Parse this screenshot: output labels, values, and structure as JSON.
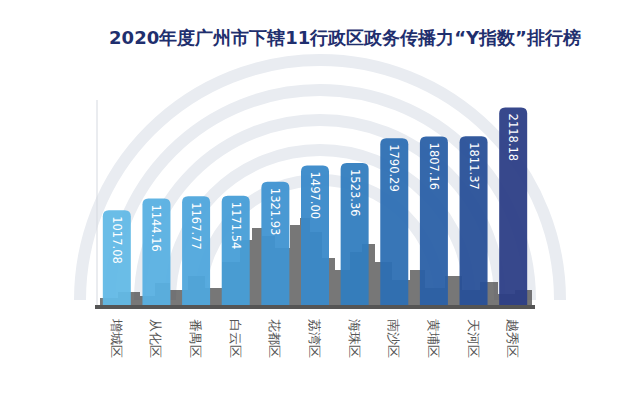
{
  "chart_data": {
    "type": "bar",
    "title": "2020年度广州市下辖11行政区政务传播力“Y指数”排行榜",
    "categories": [
      "增城区",
      "从化区",
      "番禺区",
      "白云区",
      "花都区",
      "荔湾区",
      "海珠区",
      "南沙区",
      "黄埔区",
      "天河区",
      "越秀区"
    ],
    "values": [
      1017.08,
      1144.16,
      1167.77,
      1171.54,
      1321.93,
      1497.0,
      1523.36,
      1790.29,
      1807.16,
      1811.37,
      2118.18
    ],
    "value_labels": [
      "1017.08",
      "1144.16",
      "1167.77",
      "1171.54",
      "1321.93",
      "1497.00",
      "1523.36",
      "1790.29",
      "1807.16",
      "1811.37",
      "2118.18"
    ],
    "colors": [
      "#62b9e6",
      "#58b0e1",
      "#4fa7dc",
      "#479ed7",
      "#4094d1",
      "#3989c9",
      "#327dbf",
      "#2d6fb3",
      "#2a60a6",
      "#285098",
      "#2c3e86"
    ],
    "ylim": [
      0,
      2200
    ],
    "data_labels": true,
    "tick_labels": "x"
  }
}
